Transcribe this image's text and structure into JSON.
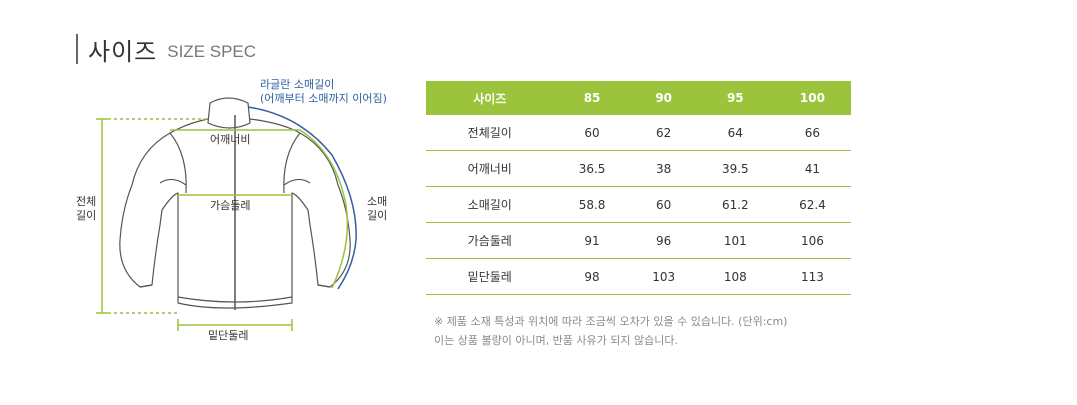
{
  "title": {
    "ko": "사이즈",
    "en": "SIZE SPEC"
  },
  "diagram": {
    "raglan_sleeve_label": "라글란 소매길이",
    "raglan_sleeve_sub": "(어깨부터 소매까지 이어짐)",
    "shoulder_label": "어깨너비",
    "chest_label": "가슴둘레",
    "total_length_line1": "전체",
    "total_length_line2": "길이",
    "sleeve_line1": "소매",
    "sleeve_line2": "길이",
    "hem_label": "밑단둘레",
    "colors": {
      "accent_green": "#9bc33b",
      "measure_blue": "#2f5f9f",
      "outline": "#555555"
    }
  },
  "table": {
    "headers": [
      "사이즈",
      "85",
      "90",
      "95",
      "100"
    ],
    "rows": [
      [
        "전체길이",
        "60",
        "62",
        "64",
        "66"
      ],
      [
        "어깨너비",
        "36.5",
        "38",
        "39.5",
        "41"
      ],
      [
        "소매길이",
        "58.8",
        "60",
        "61.2",
        "62.4"
      ],
      [
        "가슴둘레",
        "91",
        "96",
        "101",
        "106"
      ],
      [
        "밑단둘레",
        "98",
        "103",
        "108",
        "113"
      ]
    ]
  },
  "notes": [
    "※ 제품 소재 특성과 위치에 따라 조금씩 오차가 있을 수 있습니다. (단위:cm)",
    "이는 상품 불량이 아니며, 반품 사유가 되지 않습니다."
  ]
}
